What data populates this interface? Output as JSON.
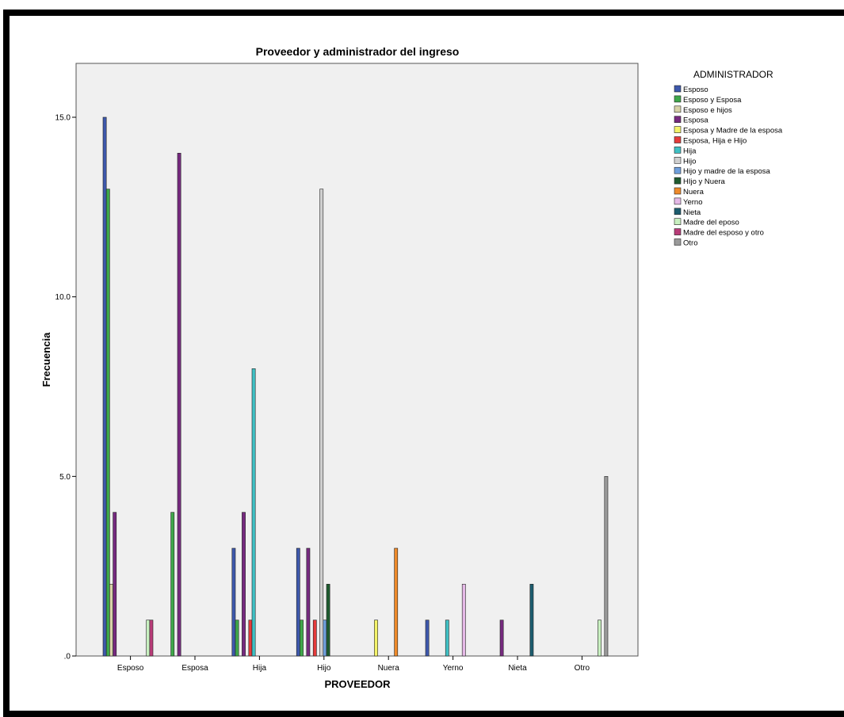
{
  "chart_data": {
    "type": "bar",
    "title": "Proveedor y administrador del ingreso",
    "xlabel": "PROVEEDOR",
    "ylabel": "Frecuencia",
    "ylim": [
      0,
      16.5
    ],
    "y_ticks": [
      {
        "value": 0,
        "label": ".0"
      },
      {
        "value": 5,
        "label": "5.0"
      },
      {
        "value": 10,
        "label": "10.0"
      },
      {
        "value": 15,
        "label": "15.0"
      }
    ],
    "categories": [
      "Esposo",
      "Esposa",
      "Hija",
      "Hijo",
      "Nuera",
      "Yerno",
      "Nieta",
      "Otro"
    ],
    "legend_title": "ADMINISTRADOR",
    "legend_position": "right",
    "series": [
      {
        "name": "Esposo",
        "color": "#3e58ac",
        "values": [
          15,
          0,
          3,
          3,
          0,
          1,
          0,
          0
        ]
      },
      {
        "name": "Esposo y Esposa",
        "color": "#3fa74a",
        "values": [
          13,
          4,
          1,
          1,
          0,
          0,
          0,
          0
        ]
      },
      {
        "name": "Esposo e hijos",
        "color": "#d7d2a8",
        "values": [
          2,
          0,
          0,
          0,
          0,
          0,
          0,
          0
        ]
      },
      {
        "name": "Esposa",
        "color": "#762a7f",
        "values": [
          4,
          14,
          4,
          3,
          0,
          0,
          1,
          0
        ]
      },
      {
        "name": "Esposa y Madre de la esposa",
        "color": "#f4f36a",
        "values": [
          0,
          0,
          0,
          0,
          1,
          0,
          0,
          0
        ]
      },
      {
        "name": "Esposa, Hija e Hijo",
        "color": "#e53b3b",
        "values": [
          0,
          0,
          1,
          1,
          0,
          0,
          0,
          0
        ]
      },
      {
        "name": "Hija",
        "color": "#40c0c4",
        "values": [
          0,
          0,
          8,
          0,
          0,
          1,
          0,
          0
        ]
      },
      {
        "name": "Hijo",
        "color": "#cfcfcf",
        "values": [
          0,
          0,
          0,
          13,
          0,
          0,
          0,
          0
        ]
      },
      {
        "name": "Hijo y madre de la esposa",
        "color": "#6f9fdc",
        "values": [
          0,
          0,
          0,
          1,
          0,
          0,
          0,
          0
        ]
      },
      {
        "name": "HIjo y Nuera",
        "color": "#1f5b30",
        "values": [
          0,
          0,
          0,
          2,
          0,
          0,
          0,
          0
        ]
      },
      {
        "name": "Nuera",
        "color": "#ee8a2a",
        "values": [
          0,
          0,
          0,
          0,
          3,
          0,
          0,
          0
        ]
      },
      {
        "name": "Yerno",
        "color": "#e5b9e7",
        "values": [
          0,
          0,
          0,
          0,
          0,
          2,
          0,
          0
        ]
      },
      {
        "name": "Nieta",
        "color": "#1d5d6f",
        "values": [
          0,
          0,
          0,
          0,
          0,
          0,
          2,
          0
        ]
      },
      {
        "name": "Madre del eposo",
        "color": "#c8f0c0",
        "values": [
          1,
          0,
          0,
          0,
          0,
          0,
          0,
          1
        ]
      },
      {
        "name": "Madre del esposo y otro",
        "color": "#b83c78",
        "values": [
          1,
          0,
          0,
          0,
          0,
          0,
          0,
          0
        ]
      },
      {
        "name": "Otro",
        "color": "#9a9a9a",
        "values": [
          0,
          0,
          0,
          0,
          0,
          0,
          0,
          5
        ]
      }
    ],
    "plot_background": "#f0f0f0",
    "grid": false
  }
}
